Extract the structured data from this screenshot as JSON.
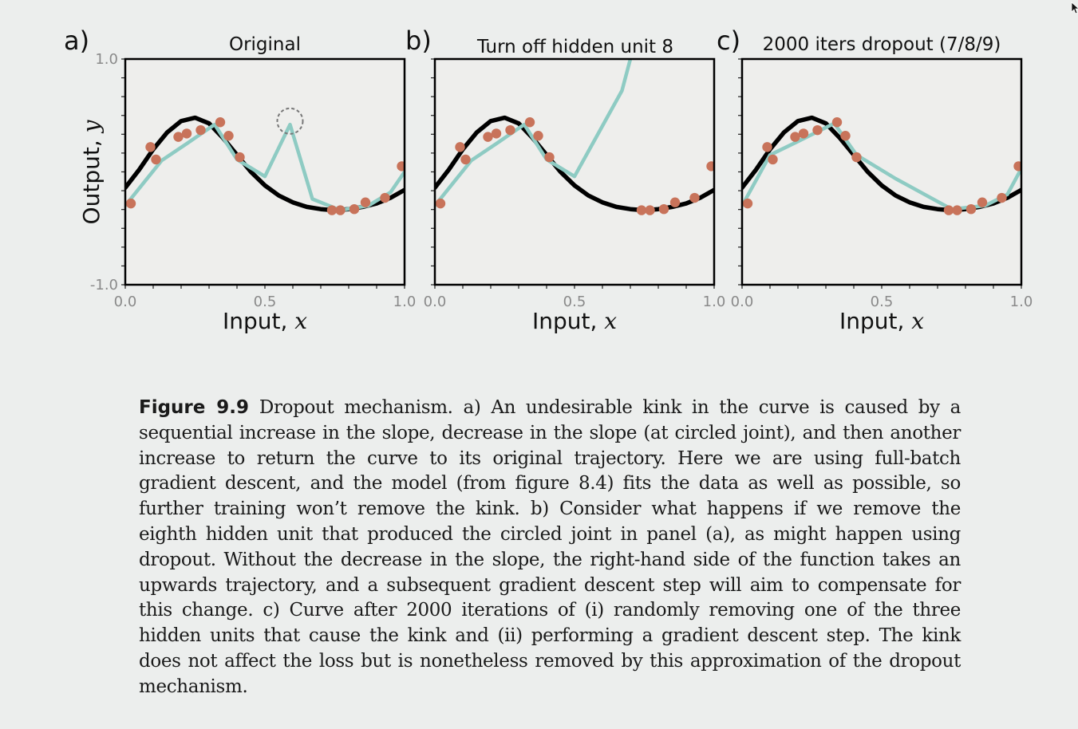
{
  "figure": {
    "panels": [
      {
        "letter": "a)",
        "title": "Original",
        "show_y_label": true,
        "show_y_ticks": true,
        "circle_joint": true
      },
      {
        "letter": "b)",
        "title": "Turn off hidden unit 8",
        "show_y_label": false,
        "show_y_ticks": false,
        "circle_joint": false
      },
      {
        "letter": "c)",
        "title": "2000 iters dropout (7/8/9)",
        "show_y_label": false,
        "show_y_ticks": false,
        "circle_joint": false
      }
    ],
    "x_axis": {
      "label": "Input, ",
      "var": "x",
      "ticks": [
        "0.0",
        "0.5",
        "1.0"
      ]
    },
    "y_axis": {
      "label": "Output, ",
      "var": "y",
      "ticks": [
        "1.0",
        "-1.0"
      ]
    }
  },
  "chart_data": [
    {
      "type": "line",
      "title": "Original",
      "xlabel": "Input, x",
      "ylabel": "Output, y",
      "xlim": [
        0,
        1
      ],
      "ylim": [
        -1,
        1
      ],
      "series": [
        {
          "role": "true-function",
          "color": "#000000",
          "x": [
            0.0,
            0.05,
            0.1,
            0.15,
            0.2,
            0.25,
            0.3,
            0.35,
            0.4,
            0.45,
            0.5,
            0.55,
            0.6,
            0.65,
            0.7,
            0.75,
            0.8,
            0.85,
            0.9,
            0.95,
            1.0
          ],
          "y": [
            -0.14,
            0.02,
            0.2,
            0.35,
            0.45,
            0.48,
            0.43,
            0.3,
            0.15,
            0.0,
            -0.12,
            -0.21,
            -0.27,
            -0.31,
            -0.33,
            -0.34,
            -0.33,
            -0.31,
            -0.28,
            -0.23,
            -0.16
          ]
        },
        {
          "role": "model-fit",
          "color": "#8ecbc3",
          "x": [
            0.0,
            0.13,
            0.22,
            0.32,
            0.4,
            0.5,
            0.59,
            0.67,
            0.77,
            0.87,
            0.95,
            1.0
          ],
          "y": [
            -0.3,
            0.1,
            0.25,
            0.42,
            0.11,
            -0.04,
            0.42,
            -0.24,
            -0.34,
            -0.3,
            -0.18,
            0.0
          ]
        },
        {
          "role": "data",
          "color": "#c8735a",
          "x": [
            0.02,
            0.09,
            0.11,
            0.19,
            0.22,
            0.27,
            0.34,
            0.37,
            0.41,
            0.74,
            0.77,
            0.82,
            0.86,
            0.93,
            0.99
          ],
          "y": [
            -0.28,
            0.22,
            0.11,
            0.31,
            0.34,
            0.37,
            0.44,
            0.32,
            0.13,
            -0.34,
            -0.34,
            -0.33,
            -0.27,
            -0.23,
            0.05
          ]
        }
      ],
      "annotations": [
        {
          "type": "circle",
          "x": 0.59,
          "y": 0.45
        }
      ]
    },
    {
      "type": "line",
      "title": "Turn off hidden unit 8",
      "xlabel": "Input, x",
      "xlim": [
        0,
        1
      ],
      "ylim": [
        -1,
        1
      ],
      "series": [
        {
          "role": "true-function",
          "color": "#000000",
          "x": [
            0.0,
            0.05,
            0.1,
            0.15,
            0.2,
            0.25,
            0.3,
            0.35,
            0.4,
            0.45,
            0.5,
            0.55,
            0.6,
            0.65,
            0.7,
            0.75,
            0.8,
            0.85,
            0.9,
            0.95,
            1.0
          ],
          "y": [
            -0.14,
            0.02,
            0.2,
            0.35,
            0.45,
            0.48,
            0.43,
            0.3,
            0.15,
            0.0,
            -0.12,
            -0.21,
            -0.27,
            -0.31,
            -0.33,
            -0.34,
            -0.33,
            -0.31,
            -0.28,
            -0.23,
            -0.16
          ]
        },
        {
          "role": "model-fit",
          "color": "#8ecbc3",
          "x": [
            0.0,
            0.13,
            0.22,
            0.32,
            0.4,
            0.5,
            0.67,
            0.7
          ],
          "y": [
            -0.3,
            0.1,
            0.25,
            0.42,
            0.11,
            -0.04,
            0.72,
            1.0
          ]
        },
        {
          "role": "data",
          "color": "#c8735a",
          "x": [
            0.02,
            0.09,
            0.11,
            0.19,
            0.22,
            0.27,
            0.34,
            0.37,
            0.41,
            0.74,
            0.77,
            0.82,
            0.86,
            0.93,
            0.99
          ],
          "y": [
            -0.28,
            0.22,
            0.11,
            0.31,
            0.34,
            0.37,
            0.44,
            0.32,
            0.13,
            -0.34,
            -0.34,
            -0.33,
            -0.27,
            -0.23,
            0.05
          ]
        }
      ]
    },
    {
      "type": "line",
      "title": "2000 iters dropout (7/8/9)",
      "xlabel": "Input, x",
      "xlim": [
        0,
        1
      ],
      "ylim": [
        -1,
        1
      ],
      "series": [
        {
          "role": "true-function",
          "color": "#000000",
          "x": [
            0.0,
            0.05,
            0.1,
            0.15,
            0.2,
            0.25,
            0.3,
            0.35,
            0.4,
            0.45,
            0.5,
            0.55,
            0.6,
            0.65,
            0.7,
            0.75,
            0.8,
            0.85,
            0.9,
            0.95,
            1.0
          ],
          "y": [
            -0.14,
            0.02,
            0.2,
            0.35,
            0.45,
            0.48,
            0.43,
            0.3,
            0.15,
            0.0,
            -0.12,
            -0.21,
            -0.27,
            -0.31,
            -0.33,
            -0.34,
            -0.33,
            -0.31,
            -0.28,
            -0.23,
            -0.16
          ]
        },
        {
          "role": "model-fit",
          "color": "#8ecbc3",
          "x": [
            0.0,
            0.1,
            0.2,
            0.33,
            0.41,
            0.55,
            0.75,
            0.87,
            0.95,
            1.0
          ],
          "y": [
            -0.3,
            0.15,
            0.27,
            0.43,
            0.15,
            -0.06,
            -0.33,
            -0.3,
            -0.2,
            0.03
          ]
        },
        {
          "role": "data",
          "color": "#c8735a",
          "x": [
            0.02,
            0.09,
            0.11,
            0.19,
            0.22,
            0.27,
            0.34,
            0.37,
            0.41,
            0.74,
            0.77,
            0.82,
            0.86,
            0.93,
            0.99
          ],
          "y": [
            -0.28,
            0.22,
            0.11,
            0.31,
            0.34,
            0.37,
            0.44,
            0.32,
            0.13,
            -0.34,
            -0.34,
            -0.33,
            -0.27,
            -0.23,
            0.05
          ]
        }
      ]
    }
  ],
  "caption": {
    "label": "Figure 9.9",
    "text": " Dropout mechanism.  a) An undesirable kink in the curve is caused by a sequential increase in the slope, decrease in the slope (at circled joint), and then another increase to return the curve to its original trajectory. Here we are using full-batch gradient descent, and the model (from figure 8.4) fits the data as well as possible, so further training won’t remove the kink. b) Consider what happens if we remove the eighth hidden unit that produced the circled joint in panel (a), as might happen using dropout. Without the decrease in the slope, the right-hand side of the function takes an upwards trajectory, and a subsequent gradient descent step will aim to compensate for this change. c) Curve after 2000 iterations of (i) randomly removing one of the three hidden units that cause the kink and (ii) performing a gradient descent step. The kink does not affect the loss but is nonetheless removed by this approximation of the dropout mechanism."
  }
}
